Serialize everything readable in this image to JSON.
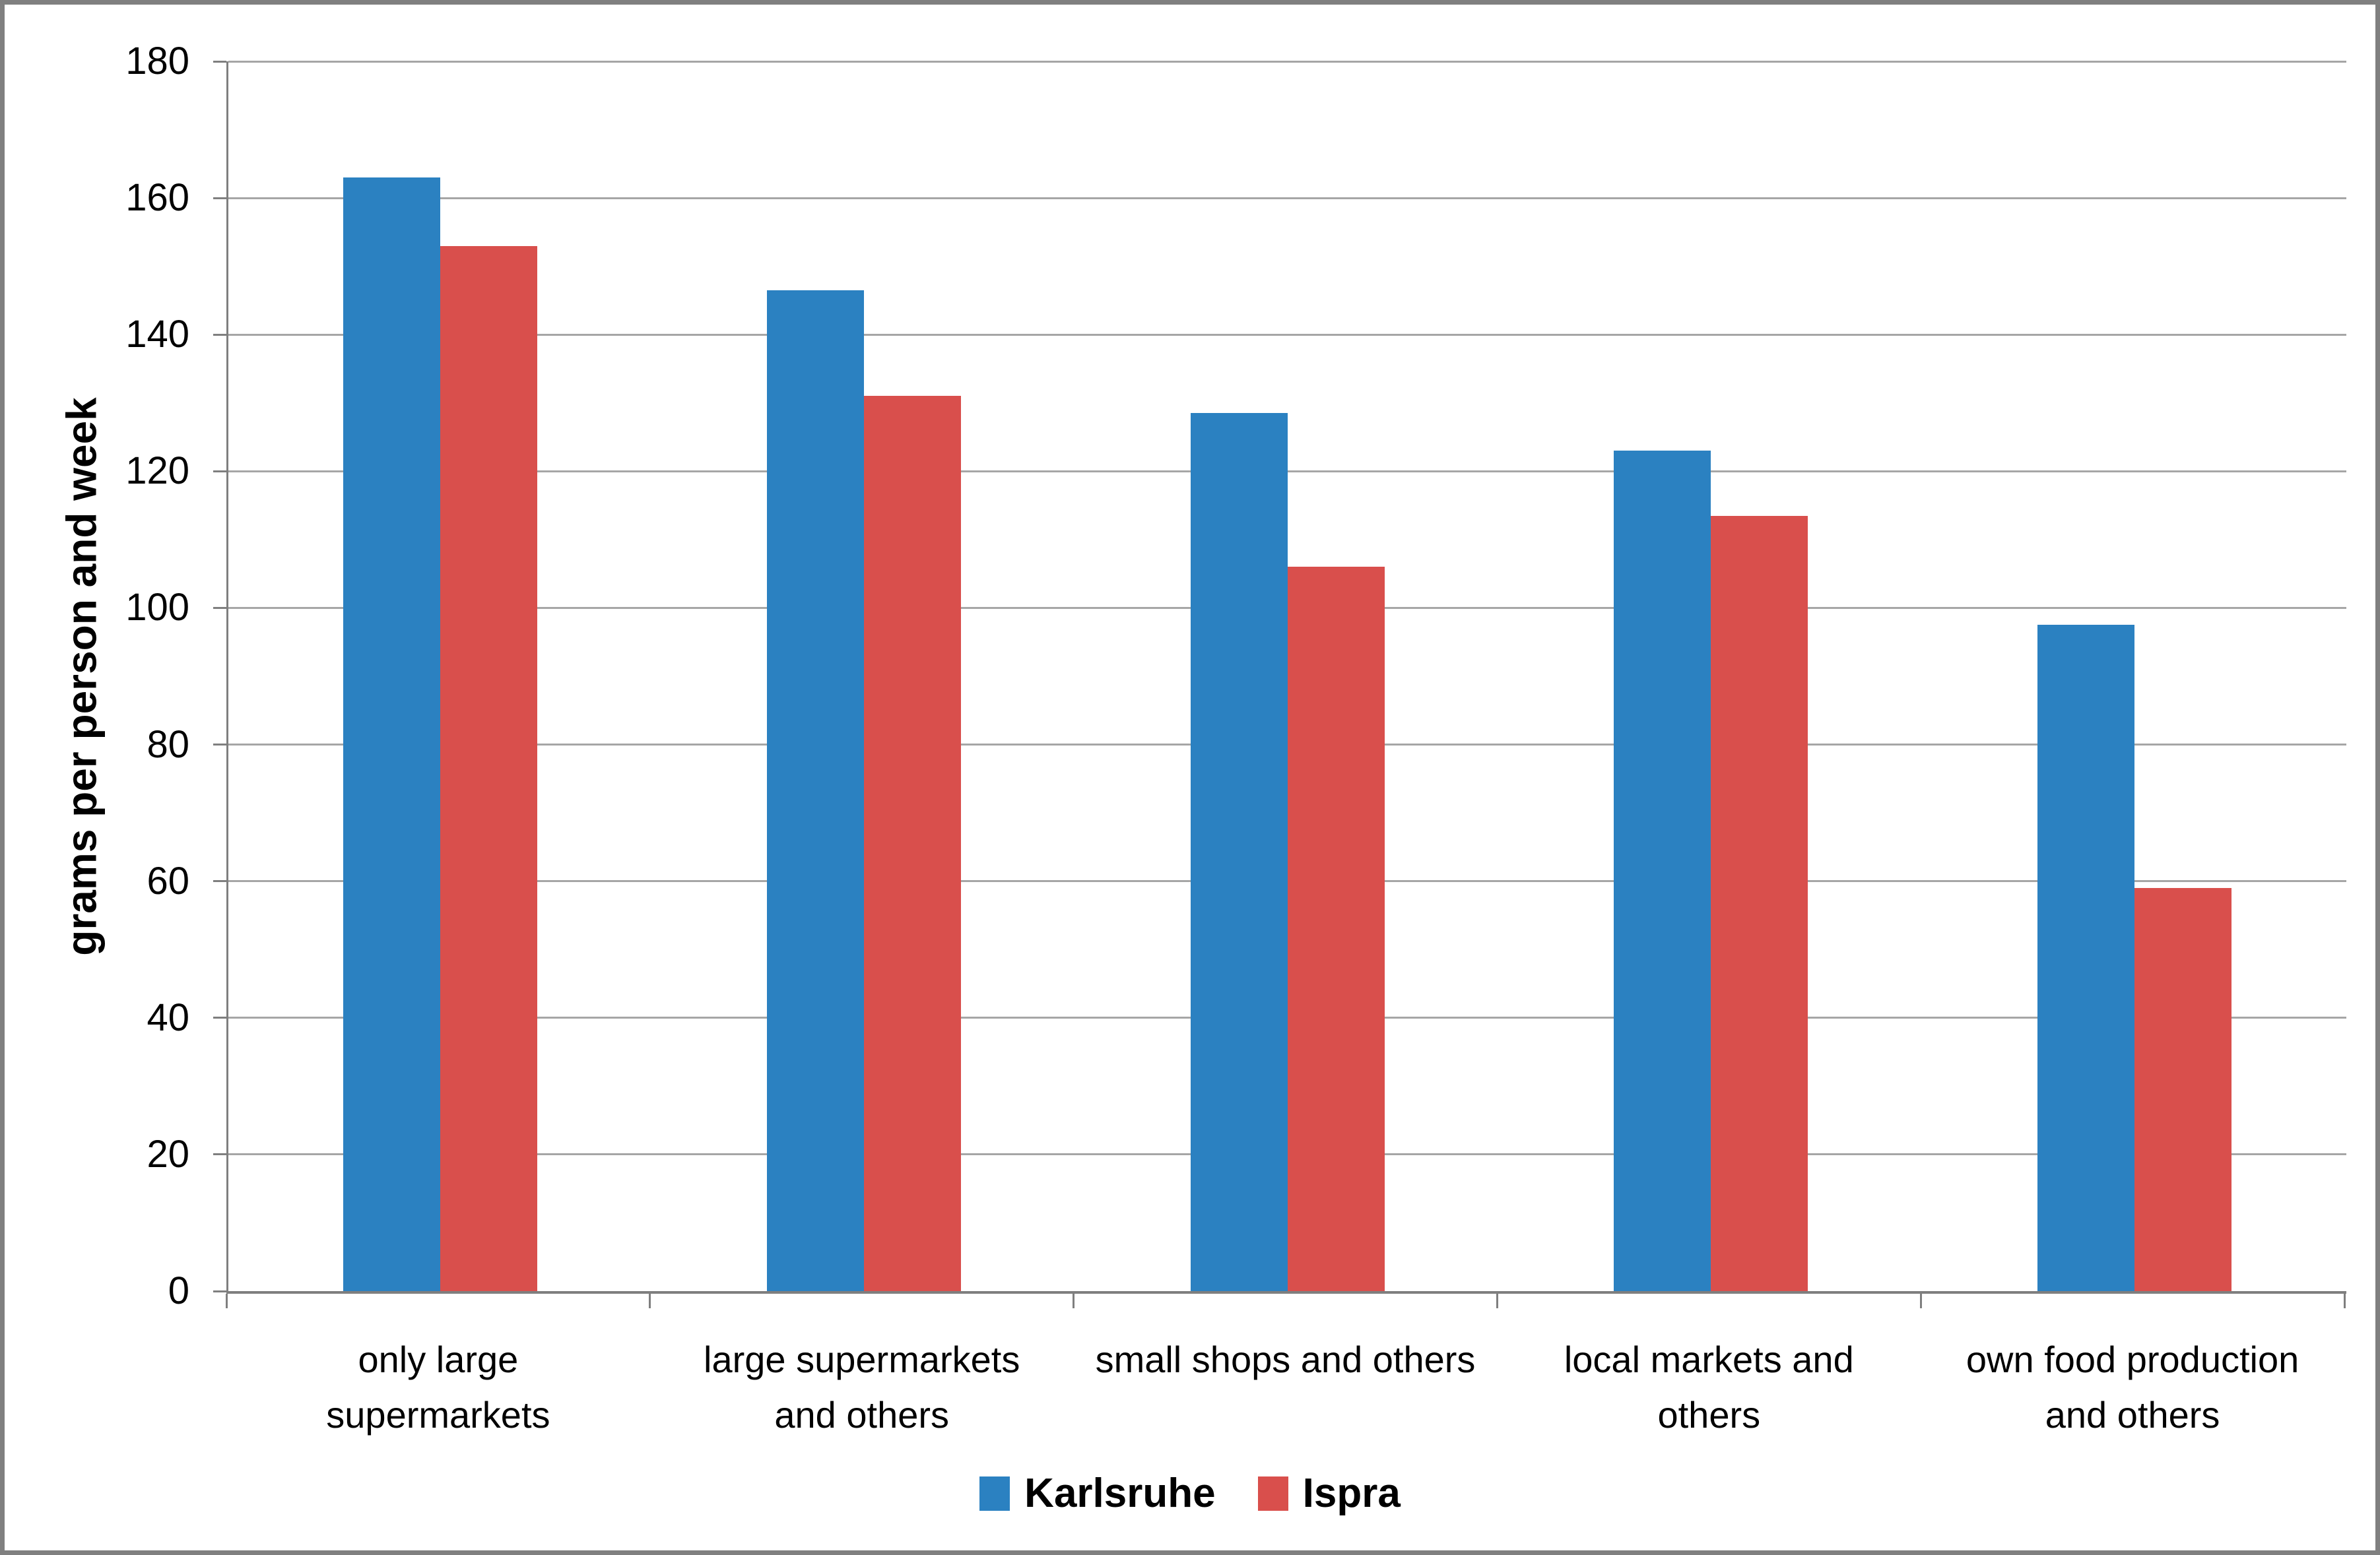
{
  "chart_data": {
    "type": "bar",
    "title": "",
    "ylabel": "grams per person and week",
    "xlabel": "",
    "ylim": [
      0,
      180
    ],
    "ytick_step": 20,
    "grid": true,
    "legend_position": "bottom",
    "categories": [
      "only large\nsupermarkets",
      "large supermarkets\nand others",
      "small shops and others",
      "local markets and\nothers",
      "own food production\nand others"
    ],
    "series": [
      {
        "name": "Karlsruhe",
        "color": "#2B81C1",
        "values": [
          163,
          146.5,
          128.5,
          123,
          97.5
        ]
      },
      {
        "name": "Ispra",
        "color": "#D94F4C",
        "values": [
          153,
          131,
          106,
          113.5,
          59
        ]
      }
    ]
  },
  "style": {
    "background": "#FFFFFF",
    "gridline_color": "#A6A6A6",
    "axis_color": "#7F7F7F",
    "outer_border_color": "#808080",
    "text_color": "#000000"
  }
}
